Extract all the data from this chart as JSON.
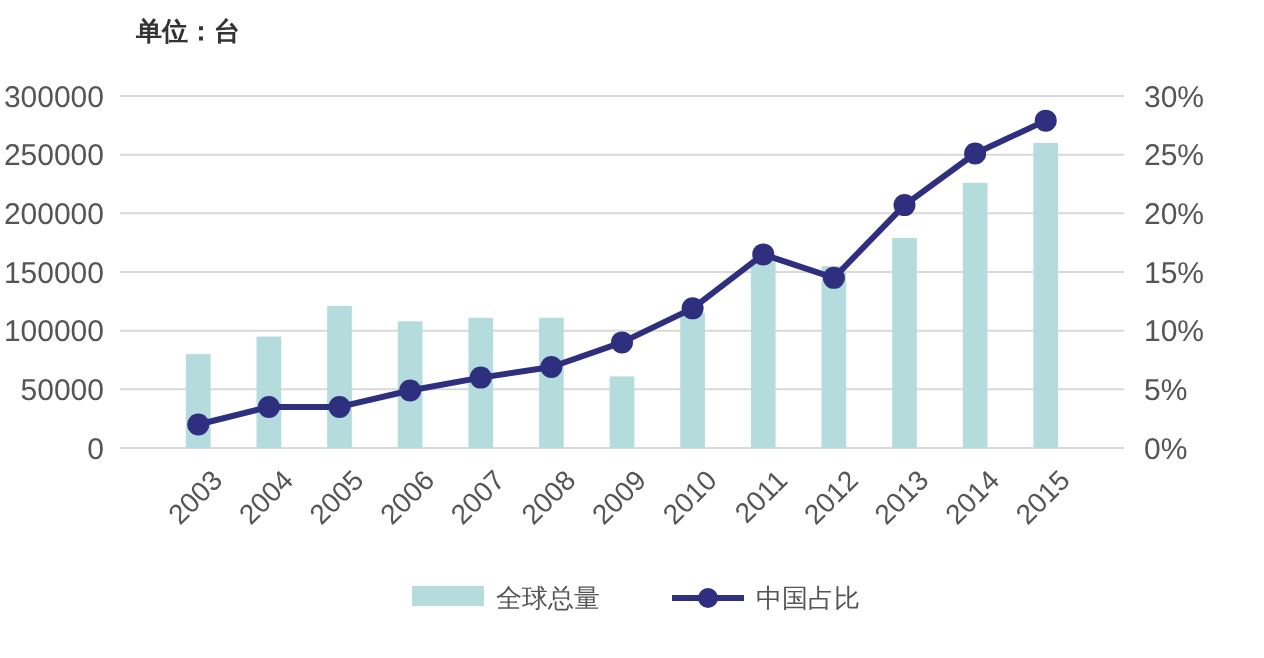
{
  "chart_data": {
    "type": "bar",
    "ylabel": "单位：台",
    "categories": [
      "2003",
      "2004",
      "2005",
      "2006",
      "2007",
      "2008",
      "2009",
      "2010",
      "2011",
      "2012",
      "2013",
      "2014",
      "2015"
    ],
    "series": [
      {
        "name": "全球总量",
        "color": "#b5dcdc",
        "values": [
          80000,
          95000,
          121000,
          108000,
          111000,
          111000,
          61000,
          115000,
          160000,
          155000,
          179000,
          226000,
          260000
        ]
      },
      {
        "name": "中国占比",
        "type": "line",
        "axis": "y2",
        "color": "#2e2f7f",
        "marker": "circle",
        "values": [
          2.0,
          3.5,
          3.5,
          4.9,
          6.0,
          6.9,
          9.0,
          11.9,
          16.5,
          14.5,
          20.7,
          25.1,
          27.9
        ]
      }
    ],
    "ylim": [
      0,
      300000
    ],
    "yticks": [
      0,
      50000,
      100000,
      150000,
      200000,
      250000,
      300000
    ],
    "y2lim": [
      0,
      30
    ],
    "y2ticks": [
      {
        "value": 0,
        "label": "0%"
      },
      {
        "value": 5,
        "label": "5%"
      },
      {
        "value": 10,
        "label": "10%"
      },
      {
        "value": 15,
        "label": "15%"
      },
      {
        "value": 20,
        "label": "20%"
      },
      {
        "value": 25,
        "label": "25%"
      },
      {
        "value": 30,
        "label": "30%"
      }
    ],
    "grid": "y",
    "legend": "bottom"
  }
}
